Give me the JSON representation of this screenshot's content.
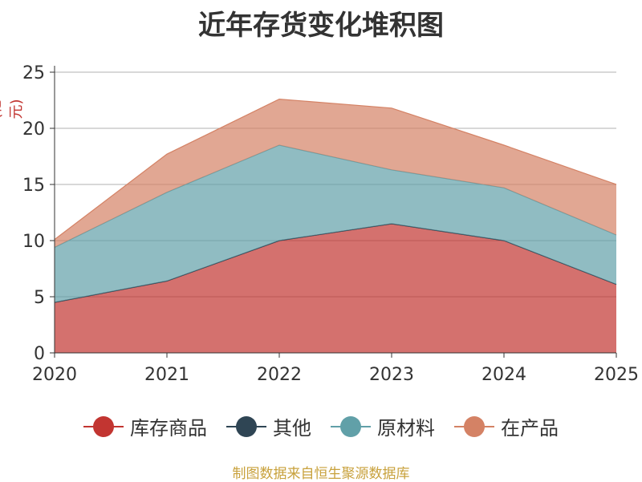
{
  "chart_data": {
    "type": "area",
    "stacked": true,
    "title": "近年存货变化堆积图",
    "ylabel": "(亿元)",
    "categories": [
      "2020",
      "2021",
      "2022",
      "2023",
      "2024",
      "2025"
    ],
    "ylim": [
      0,
      25
    ],
    "yticks": [
      "0",
      "5",
      "10",
      "15",
      "20",
      "25"
    ],
    "grid": true,
    "legend_position": "bottom",
    "series": [
      {
        "name": "库存商品",
        "color": "#c23531",
        "values": [
          4.5,
          6.4,
          10.0,
          11.5,
          10.0,
          6.1
        ]
      },
      {
        "name": "其他",
        "color": "#2f4554",
        "values": [
          0,
          0,
          0,
          0,
          0,
          0
        ]
      },
      {
        "name": "原材料",
        "color": "#61a0a8",
        "values": [
          4.9,
          7.9,
          8.5,
          4.8,
          4.7,
          4.4
        ]
      },
      {
        "name": "在产品",
        "color": "#d48265",
        "values": [
          0.7,
          3.4,
          4.1,
          5.5,
          3.8,
          4.5
        ]
      }
    ]
  },
  "source": "制图数据来自恒生聚源数据库"
}
